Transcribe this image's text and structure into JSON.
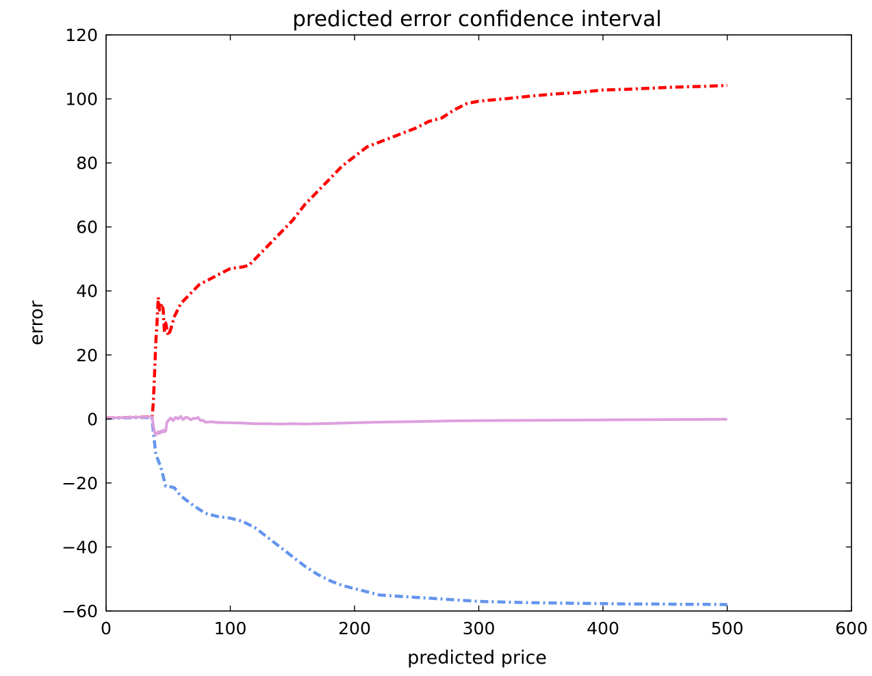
{
  "chart_data": {
    "type": "line",
    "title": "predicted error confidence interval",
    "xlabel": "predicted price",
    "ylabel": "error",
    "xlim": [
      0,
      600
    ],
    "ylim": [
      -60,
      120
    ],
    "xticks": [
      0,
      100,
      200,
      300,
      400,
      500,
      600
    ],
    "yticks": [
      -60,
      -40,
      -20,
      0,
      20,
      40,
      60,
      80,
      100,
      120
    ],
    "xtick_labels": [
      "0",
      "100",
      "200",
      "300",
      "400",
      "500",
      "600"
    ],
    "ytick_labels": [
      "−60",
      "−40",
      "−20",
      "0",
      "20",
      "40",
      "60",
      "80",
      "100",
      "120"
    ],
    "grid": false,
    "legend": false,
    "series": [
      {
        "color": "#ff0000",
        "style": "dash-dot",
        "x": [
          0,
          10,
          20,
          30,
          37,
          38,
          39,
          40,
          41,
          42,
          43,
          44,
          45,
          46,
          47,
          48,
          50,
          52,
          55,
          60,
          65,
          70,
          75,
          80,
          90,
          100,
          110,
          115,
          120,
          130,
          140,
          150,
          160,
          170,
          180,
          190,
          200,
          210,
          220,
          230,
          240,
          250,
          260,
          270,
          280,
          290,
          300,
          320,
          340,
          360,
          380,
          400,
          420,
          440,
          460,
          480,
          500
        ],
        "y": [
          0.3,
          0.4,
          0.5,
          0.6,
          0.7,
          5,
          14,
          24,
          30,
          38,
          34,
          35,
          36,
          34,
          27,
          30,
          26,
          28,
          32,
          36,
          38,
          40,
          42,
          43,
          45,
          47,
          47.5,
          48,
          50,
          54,
          58,
          62,
          67,
          71,
          75,
          79,
          82,
          85,
          86.5,
          88,
          89.5,
          91,
          93,
          94,
          96.5,
          98.5,
          99.3,
          100,
          100.8,
          101.5,
          102,
          102.8,
          103,
          103.4,
          103.7,
          103.9,
          104.2
        ]
      },
      {
        "color": "#6495ed",
        "style": "dash-dot",
        "x": [
          0,
          10,
          20,
          30,
          37,
          38,
          40,
          42,
          44,
          46,
          48,
          50,
          55,
          60,
          70,
          80,
          90,
          100,
          110,
          120,
          130,
          140,
          150,
          160,
          170,
          180,
          190,
          200,
          210,
          220,
          240,
          260,
          280,
          300,
          320,
          340,
          360,
          380,
          400,
          420,
          440,
          460,
          480,
          500
        ],
        "y": [
          0.2,
          0.3,
          0.4,
          0.5,
          0.3,
          -4,
          -11,
          -13,
          -15,
          -18,
          -21,
          -21,
          -21.5,
          -24,
          -27,
          -29.5,
          -30.5,
          -31,
          -32,
          -34,
          -37,
          -40,
          -43,
          -46,
          -48.5,
          -50.5,
          -52,
          -53,
          -54,
          -55,
          -55.5,
          -56,
          -56.5,
          -57,
          -57.2,
          -57.4,
          -57.5,
          -57.6,
          -57.7,
          -57.8,
          -57.8,
          -57.9,
          -57.9,
          -58
        ]
      },
      {
        "color": "#dda0dd",
        "style": "solid",
        "x": [
          0,
          10,
          20,
          30,
          37,
          38,
          39,
          40,
          41,
          42,
          43,
          44,
          45,
          46,
          47,
          48,
          49,
          50,
          52,
          54,
          56,
          58,
          60,
          62,
          64,
          66,
          68,
          70,
          72,
          74,
          76,
          78,
          80,
          85,
          90,
          100,
          110,
          120,
          130,
          140,
          150,
          160,
          170,
          180,
          200,
          220,
          250,
          280,
          300,
          350,
          400,
          450,
          500
        ],
        "y": [
          0.3,
          0.4,
          0.5,
          0.6,
          0.7,
          -2,
          -4,
          -5,
          -4.5,
          -4,
          -4.5,
          -3.8,
          -4.2,
          -3.5,
          -4,
          -3.8,
          -1,
          -0.5,
          0.3,
          -0.5,
          0.5,
          0,
          0.8,
          -0.2,
          0.5,
          0.4,
          -0.3,
          0.2,
          0.1,
          0.5,
          -0.5,
          -0.4,
          -1,
          -0.9,
          -1.1,
          -1.2,
          -1.3,
          -1.5,
          -1.5,
          -1.6,
          -1.5,
          -1.6,
          -1.5,
          -1.4,
          -1.2,
          -1,
          -0.8,
          -0.6,
          -0.5,
          -0.4,
          -0.3,
          -0.2,
          -0.1
        ]
      }
    ]
  }
}
